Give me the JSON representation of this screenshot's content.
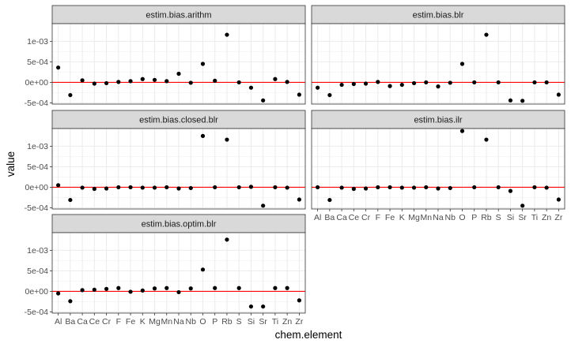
{
  "chart_data": {
    "type": "scatter",
    "facet_layout": "2 columns, 3 rows, last row single panel",
    "xlabel": "chem.element",
    "ylabel": "value",
    "categories": [
      "Al",
      "Ba",
      "Ca",
      "Ce",
      "Cr",
      "F",
      "Fe",
      "K",
      "Mg",
      "Mn",
      "Na",
      "Nb",
      "O",
      "P",
      "Rb",
      "S",
      "Si",
      "Sr",
      "Ti",
      "Zn",
      "Zr"
    ],
    "y_ticks": [
      -0.0005,
      0,
      0.0005,
      0.001
    ],
    "y_tick_labels": [
      "-5e-04",
      "0e+00",
      "5e-04",
      "1e-03"
    ],
    "ylim": [
      -0.00053,
      0.00143
    ],
    "reference_line": {
      "y": 0,
      "color": "#ff0000"
    },
    "grid": true,
    "point_color": "#000000",
    "panels": [
      {
        "name": "estim.bias.arithm",
        "values": [
          0.00036,
          -0.00031,
          5e-05,
          -3e-05,
          -2e-05,
          1e-05,
          3e-05,
          8e-05,
          6e-05,
          3e-05,
          0.00021,
          -1e-05,
          0.00045,
          4e-05,
          0.00116,
          0.0,
          -0.00013,
          -0.00044,
          8e-05,
          1e-05,
          -0.0003
        ]
      },
      {
        "name": "estim.bias.blr",
        "values": [
          -0.00013,
          -0.00031,
          -6e-05,
          -4e-05,
          -3e-05,
          1e-05,
          -9e-05,
          -6e-05,
          -2e-05,
          0.0,
          -0.0001,
          -1e-05,
          0.00045,
          0.0,
          0.00116,
          0.0,
          -0.00044,
          -0.00045,
          0.0,
          0.0,
          -0.0003
        ]
      },
      {
        "name": "estim.bias.closed.blr",
        "values": [
          5e-05,
          -0.00031,
          -1e-05,
          -4e-05,
          -3e-05,
          0.0,
          0.0,
          -1e-05,
          -1e-05,
          0.0,
          -3e-05,
          -2e-05,
          0.00125,
          0.0,
          0.00116,
          0.0,
          1e-05,
          -0.00045,
          0.0,
          -1e-05,
          -0.0003
        ]
      },
      {
        "name": "estim.bias.ilr",
        "values": [
          0.0,
          -0.00031,
          -1e-05,
          -4e-05,
          -3e-05,
          0.0,
          0.0,
          -1e-05,
          -1e-05,
          0.0,
          -3e-05,
          -2e-05,
          0.00137,
          0.0,
          0.00116,
          0.0,
          -9e-05,
          -0.00045,
          0.0,
          -1e-05,
          -0.0003
        ]
      },
      {
        "name": "estim.bias.optim.blr",
        "values": [
          -5e-05,
          -0.00024,
          3e-05,
          4e-05,
          6e-05,
          8e-05,
          -1e-05,
          2e-05,
          7e-05,
          8e-05,
          -2e-05,
          7e-05,
          0.00053,
          8e-05,
          0.00126,
          8e-05,
          -0.00037,
          -0.00037,
          8e-05,
          8e-05,
          -0.00022
        ]
      }
    ]
  }
}
